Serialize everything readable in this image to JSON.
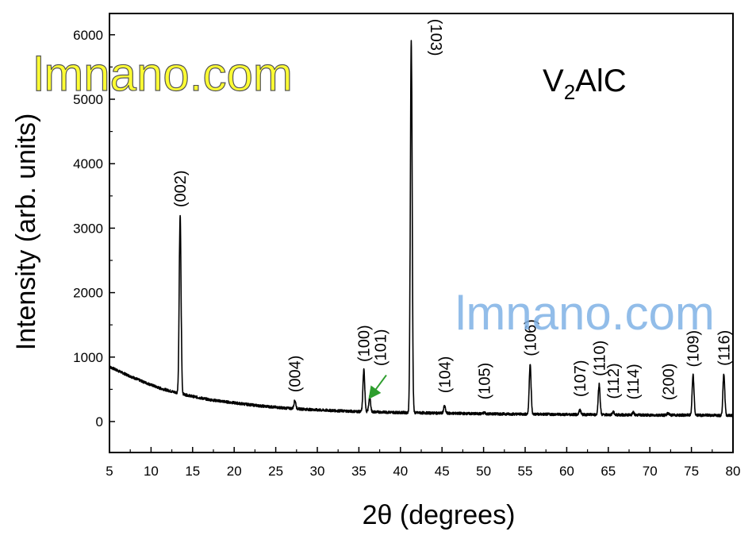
{
  "chart_data": {
    "type": "line",
    "title": "V2AlC",
    "title_main": "V",
    "title_sub": "2",
    "title_rest": "AlC",
    "xlabel": "2θ (degrees)",
    "ylabel": "Intensity (arb. units)",
    "xlim": [
      5,
      80
    ],
    "ylim": [
      -480,
      6330
    ],
    "x_ticks": [
      5,
      10,
      15,
      20,
      25,
      30,
      35,
      40,
      45,
      50,
      55,
      60,
      65,
      70,
      75,
      80
    ],
    "y_ticks": [
      0,
      1000,
      2000,
      3000,
      4000,
      5000,
      6000
    ],
    "grid": false,
    "line_color": "#000000",
    "arrow_color": "#2e9e2e",
    "background": [
      [
        5,
        850
      ],
      [
        7,
        730
      ],
      [
        9,
        620
      ],
      [
        11,
        520
      ],
      [
        13,
        450
      ],
      [
        15,
        390
      ],
      [
        17,
        340
      ],
      [
        20,
        290
      ],
      [
        23,
        245
      ],
      [
        26,
        210
      ],
      [
        30,
        180
      ],
      [
        35,
        155
      ],
      [
        40,
        140
      ],
      [
        45,
        130
      ],
      [
        50,
        120
      ],
      [
        55,
        115
      ],
      [
        60,
        110
      ],
      [
        65,
        105
      ],
      [
        70,
        100
      ],
      [
        75,
        100
      ],
      [
        80,
        95
      ]
    ],
    "peaks": [
      {
        "x": 13.5,
        "y": 3200,
        "label": "(002)"
      },
      {
        "x": 27.3,
        "y": 330,
        "label": "(004)"
      },
      {
        "x": 35.6,
        "y": 800,
        "label": "(100)"
      },
      {
        "x": 36.3,
        "y": 380,
        "label": "(101)"
      },
      {
        "x": 41.3,
        "y": 5900,
        "label": "(103)"
      },
      {
        "x": 45.3,
        "y": 240,
        "label": "(104)"
      },
      {
        "x": 50.1,
        "y": 140,
        "label": "(105)"
      },
      {
        "x": 55.6,
        "y": 890,
        "label": "(106)"
      },
      {
        "x": 61.6,
        "y": 180,
        "label": "(107)"
      },
      {
        "x": 63.9,
        "y": 580,
        "label": "(110)"
      },
      {
        "x": 65.6,
        "y": 150,
        "label": "(112)"
      },
      {
        "x": 68.0,
        "y": 140,
        "label": "(114)"
      },
      {
        "x": 72.2,
        "y": 130,
        "label": "(200)"
      },
      {
        "x": 75.2,
        "y": 720,
        "label": "(109)"
      },
      {
        "x": 78.9,
        "y": 740,
        "label": "(116)"
      }
    ],
    "watermarks": [
      "lmnano.com",
      "lmnano.com"
    ]
  }
}
